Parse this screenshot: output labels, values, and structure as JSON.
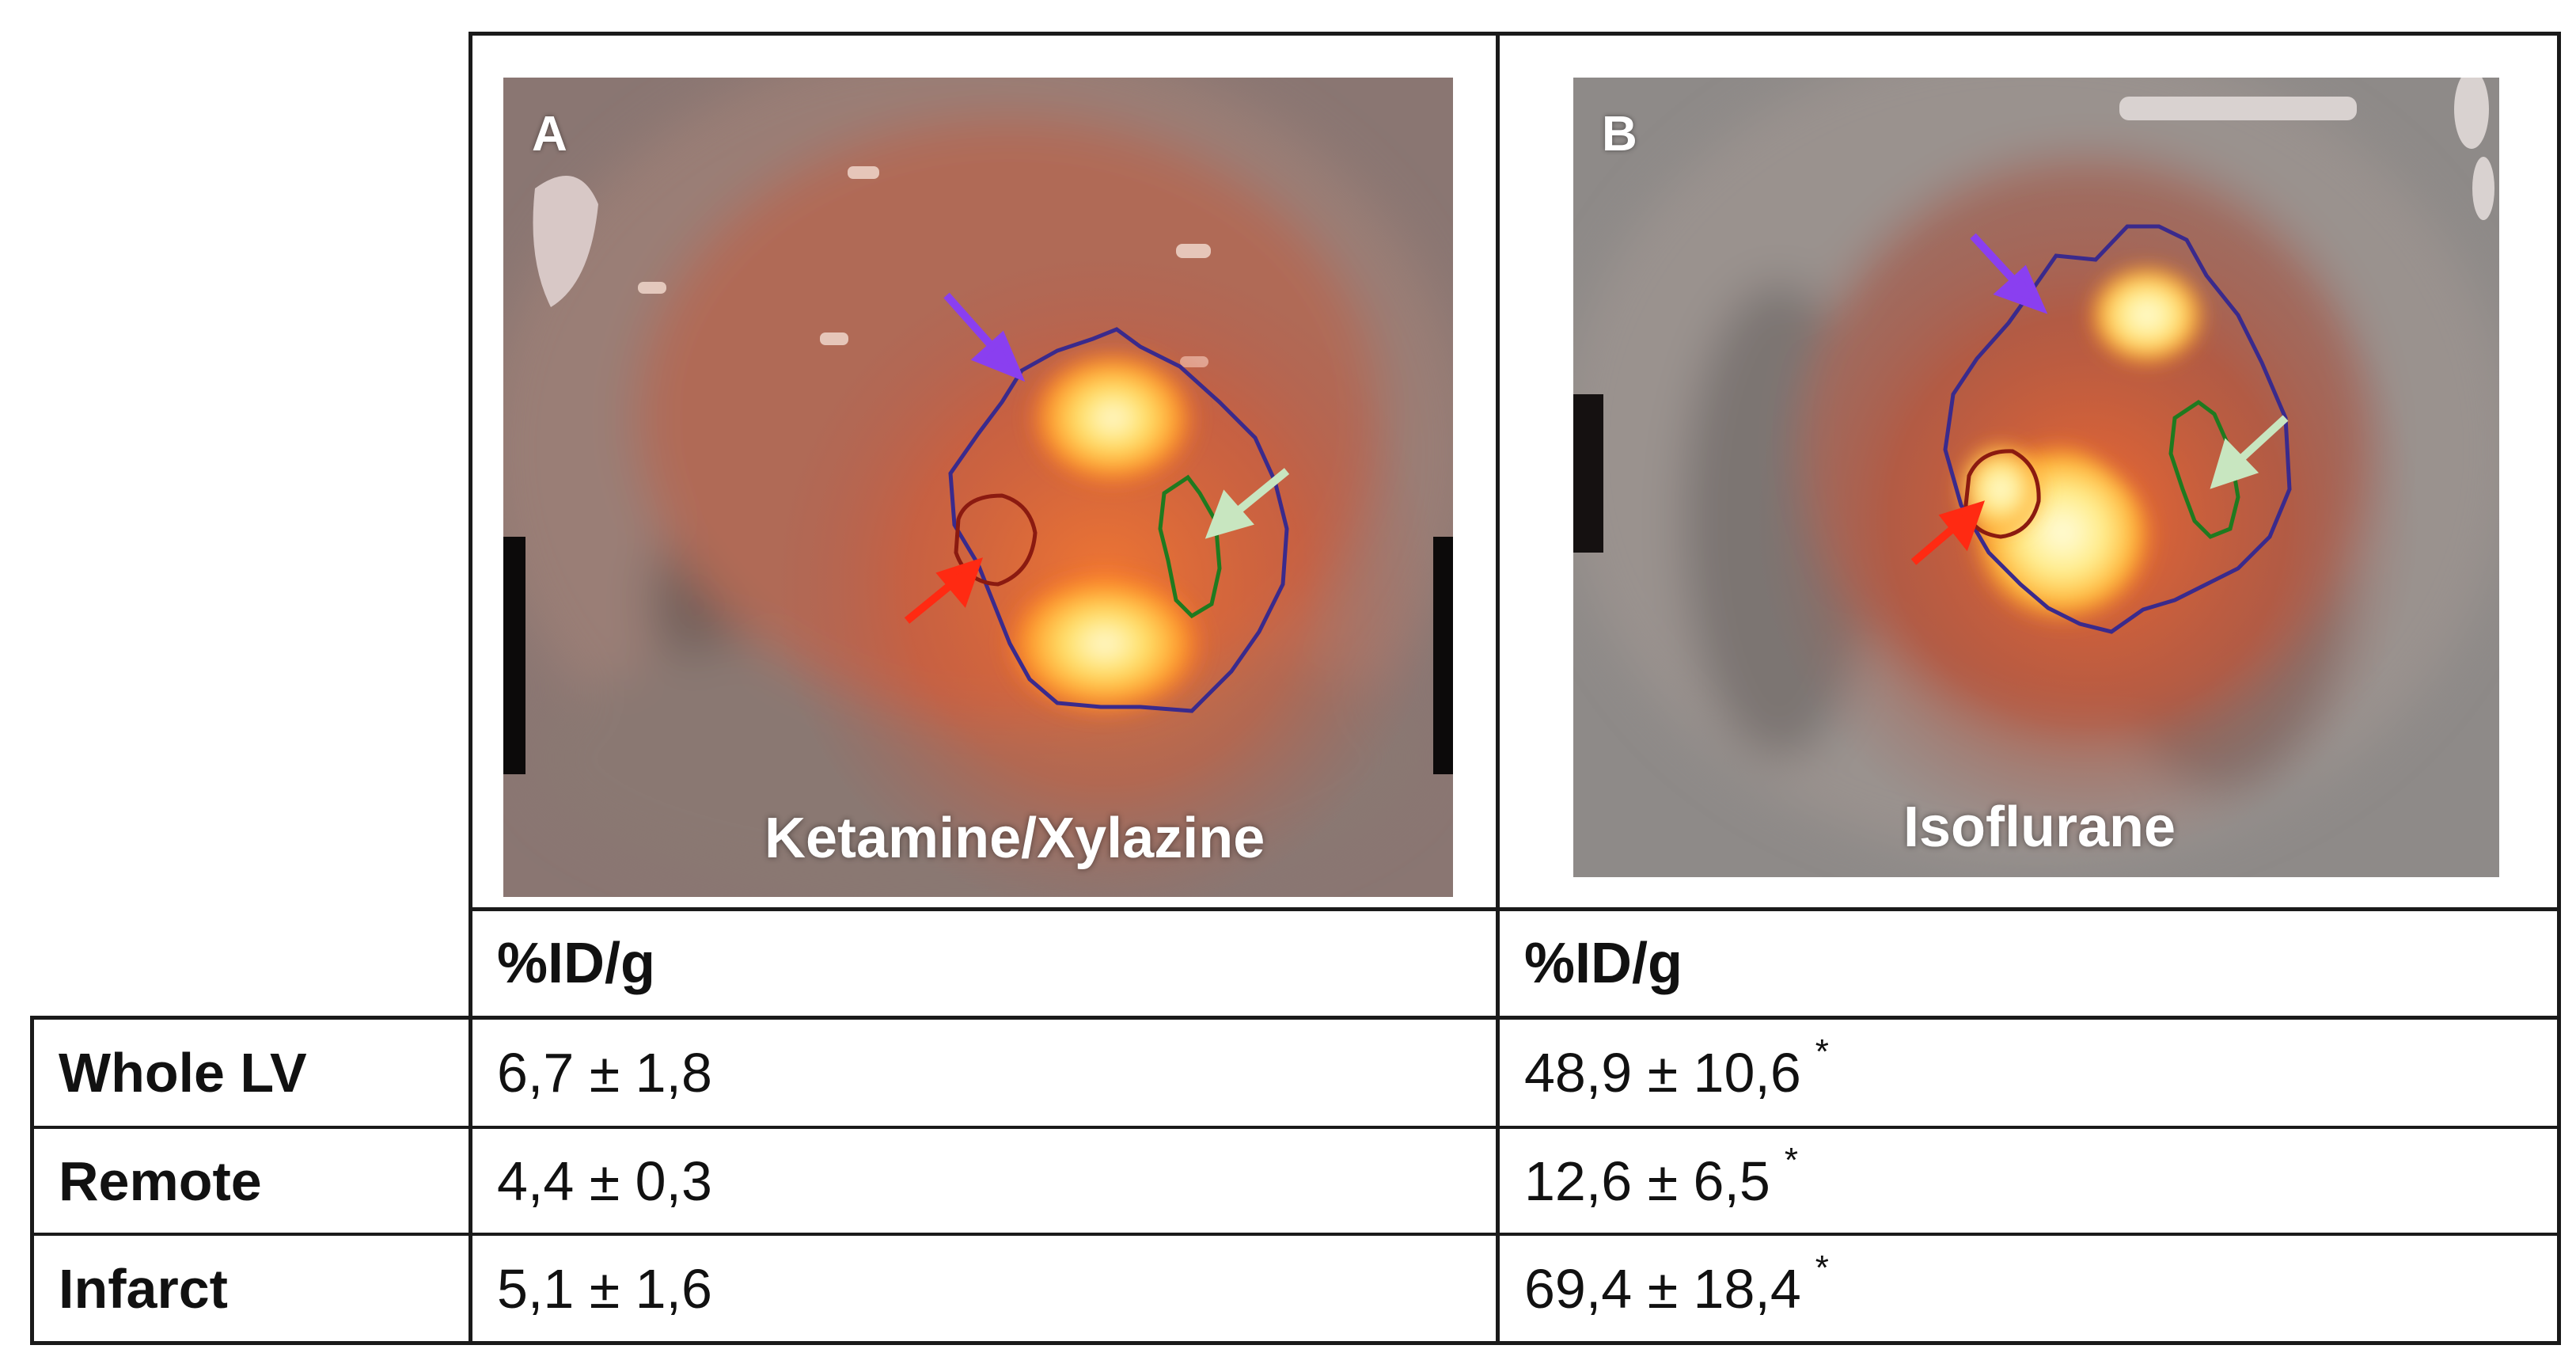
{
  "panels": [
    {
      "letter": "A",
      "caption": "Ketamine/Xylazine"
    },
    {
      "letter": "B",
      "caption": "Isoflurane"
    }
  ],
  "arrow_colors": {
    "whole_lv": "#8a3ff0",
    "remote": "#c8e6c0",
    "infarct": "#ff2a12"
  },
  "roi_colors": {
    "whole_lv": "#3a2a8c",
    "remote": "#1f7a1f",
    "infarct": "#8b1a10"
  },
  "table": {
    "column_headers": [
      "%ID/g",
      "%ID/g"
    ],
    "rows": [
      {
        "label": "Whole LV",
        "values": [
          "6,7 ± 1,8",
          "48,9 ± 10,6"
        ],
        "markers": [
          "",
          "*"
        ]
      },
      {
        "label": "Remote",
        "values": [
          "4,4 ± 0,3",
          "12,6 ± 6,5"
        ],
        "markers": [
          "",
          "*"
        ]
      },
      {
        "label": "Infarct",
        "values": [
          "5,1 ± 1,6",
          "69,4 ± 18,4"
        ],
        "markers": [
          "",
          "*"
        ]
      }
    ]
  }
}
